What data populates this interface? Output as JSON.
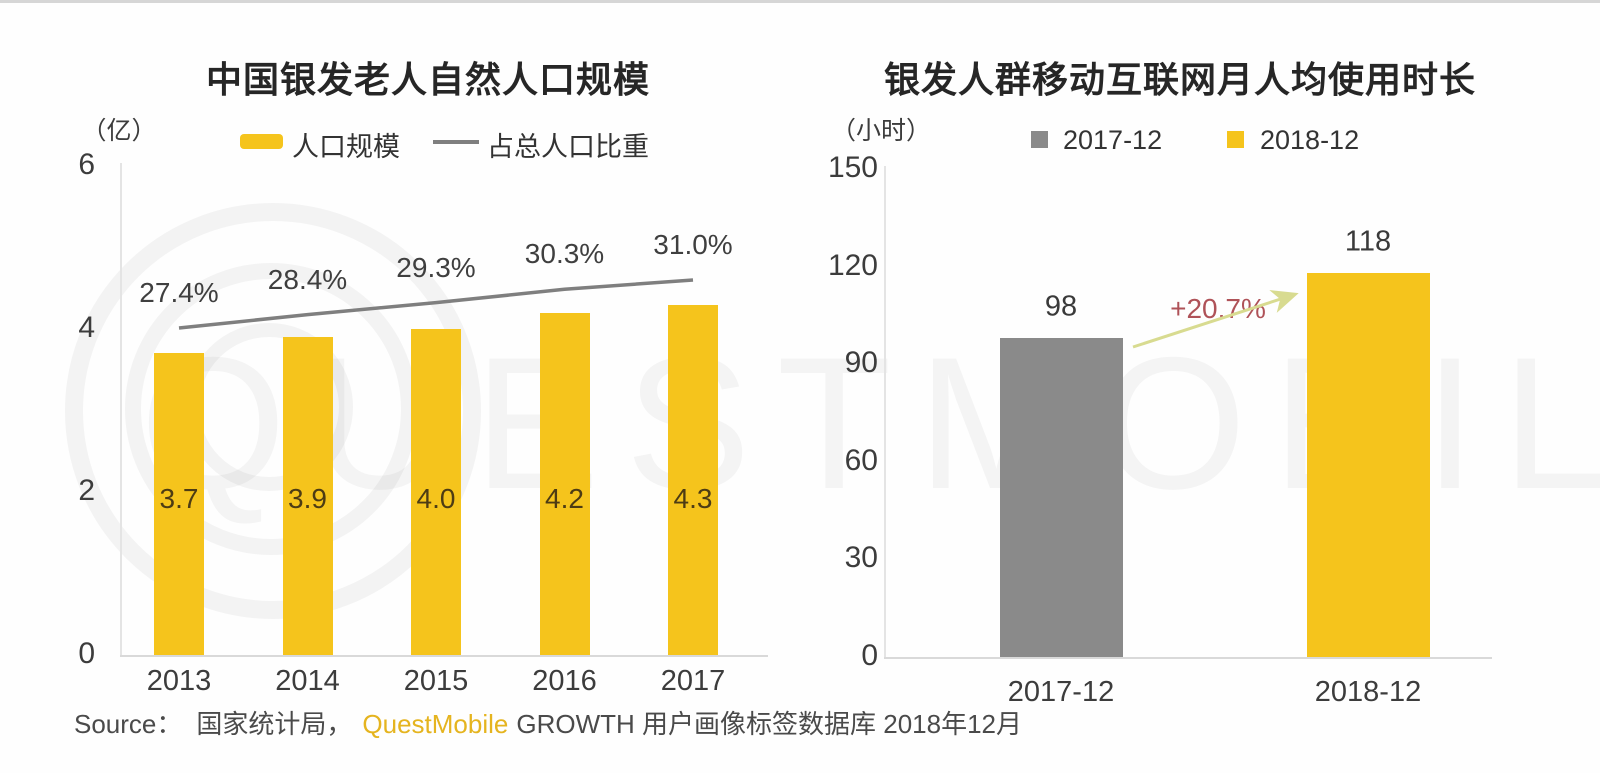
{
  "page": {
    "watermark_text": "QUESTMOBILE",
    "source": {
      "prefix": "Source：",
      "org": "国家统计局，",
      "brand": "QuestMobile",
      "suffix": "GROWTH 用户画像标签数据库 2018年12月"
    }
  },
  "colors": {
    "bar_yellow": "#F5C41C",
    "bar_gray": "#8A8A8A",
    "line_gray": "#7F7F7F",
    "arrow_green": "#D8DB90",
    "growth_red": "#AF5258",
    "brand_gold": "#E5B41F"
  },
  "chart_data": [
    {
      "id": "elderly-population",
      "type": "bar",
      "title": "中国银发老人自然人口规模",
      "unit": "（亿）",
      "legend": [
        {
          "label": "人口规模",
          "swatch": "bar"
        },
        {
          "label": "占总人口比重",
          "swatch": "line"
        }
      ],
      "categories": [
        "2013",
        "2014",
        "2015",
        "2016",
        "2017"
      ],
      "series": [
        {
          "name": "人口规模",
          "type": "bar",
          "values": [
            3.7,
            3.9,
            4.0,
            4.2,
            4.3
          ],
          "labels": [
            "3.7",
            "3.9",
            "4.0",
            "4.2",
            "4.3"
          ]
        },
        {
          "name": "占总人口比重",
          "type": "line",
          "values": [
            27.4,
            28.4,
            29.3,
            30.3,
            31.0
          ],
          "labels": [
            "27.4%",
            "28.4%",
            "29.3%",
            "30.3%",
            "31.0%"
          ]
        }
      ],
      "y_ticks": [
        6,
        4,
        2,
        0
      ],
      "ylim": [
        0,
        6
      ],
      "grid": false,
      "legend_position": "top"
    },
    {
      "id": "internet-usage-time",
      "type": "bar",
      "title": "银发人群移动互联网月人均使用时长",
      "unit": "（小时）",
      "legend": [
        {
          "label": "2017-12",
          "swatch": "gray-square"
        },
        {
          "label": "2018-12",
          "swatch": "yellow-square"
        }
      ],
      "categories": [
        "2017-12",
        "2018-12"
      ],
      "values": [
        98,
        118
      ],
      "labels": [
        "98",
        "118"
      ],
      "growth_annotation": "+20.7%",
      "y_ticks": [
        150,
        120,
        90,
        60,
        30,
        0
      ],
      "ylim": [
        0,
        150
      ],
      "grid": false,
      "legend_position": "top"
    }
  ]
}
